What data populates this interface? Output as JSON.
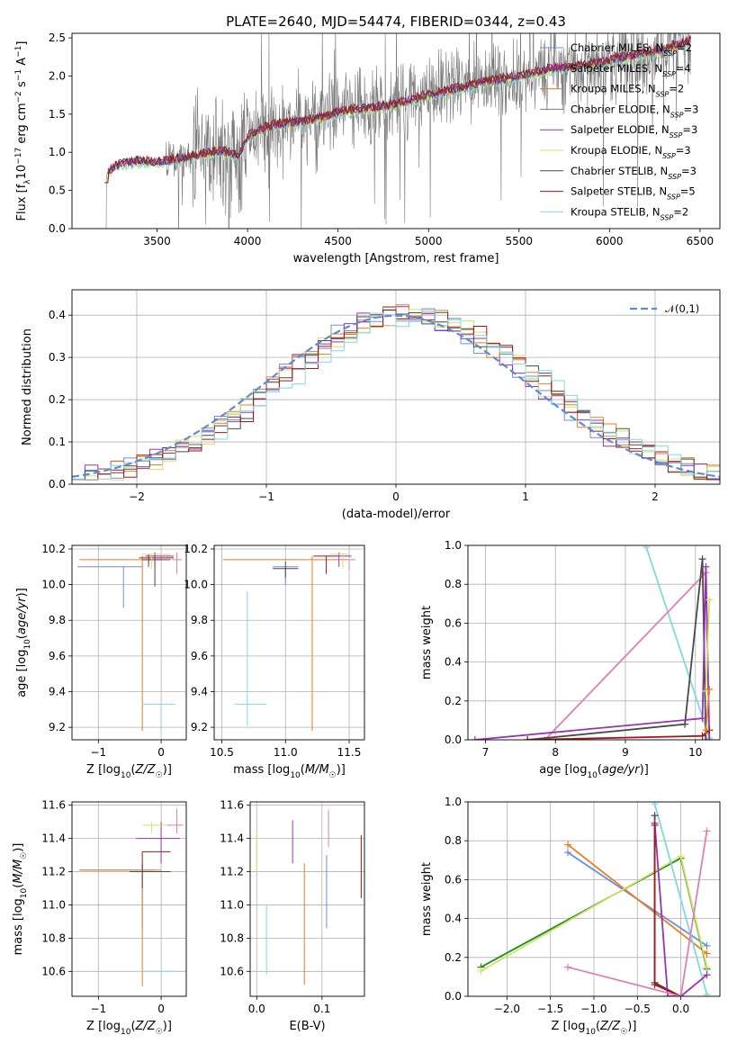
{
  "figure": {
    "title": "PLATE=2640, MJD=54474, FIBERID=0344, z=0.43"
  },
  "colors": {
    "Chabrier MILES": "#6a8fdc",
    "Salpeter MILES": "#9a32b4",
    "Kroupa MILES": "#e87e1e",
    "Chabrier ELODIE": "#1e8c1e",
    "Salpeter ELODIE": "#9a32b4",
    "Kroupa ELODIE": "#d3e06a",
    "Chabrier STELIB": "#4a4a4a",
    "Salpeter STELIB": "#a01818",
    "Kroupa STELIB": "#82d8e0",
    "extra": "#e080b0",
    "data": "#7a7a7a",
    "normal": "#5b8cdc"
  },
  "chart_data": [
    {
      "id": "spectrum",
      "type": "line",
      "title": "PLATE=2640, MJD=54474, FIBERID=0344, z=0.43",
      "xlabel": "wavelength [Angstrom, rest frame]",
      "ylabel": "Flux [f_λ 10^-17 erg cm^-2 s^-1 A^-1]",
      "xlim": [
        3030,
        6610
      ],
      "ylim": [
        0,
        2.56
      ],
      "xticks": [
        3500,
        4000,
        4500,
        5000,
        5500,
        6000,
        6500
      ],
      "yticks": [
        0.0,
        0.5,
        1.0,
        1.5,
        2.0,
        2.5
      ],
      "legend_position": "top-right",
      "legend": [
        {
          "label": "Chabrier MILES, N",
          "sub": "SSP",
          "tail": "=2",
          "key": "Chabrier MILES"
        },
        {
          "label": "Salpeter MILES, N",
          "sub": "SSP",
          "tail": "=4",
          "key": "Salpeter MILES"
        },
        {
          "label": "Kroupa MILES, N",
          "sub": "SSP",
          "tail": "=2",
          "key": "Kroupa MILES"
        },
        {
          "label": "Chabrier ELODIE, N",
          "sub": "SSP",
          "tail": "=3",
          "key": "data"
        },
        {
          "label": "Salpeter ELODIE, N",
          "sub": "SSP",
          "tail": "=3",
          "key": "Salpeter ELODIE"
        },
        {
          "label": "Kroupa ELODIE, N",
          "sub": "SSP",
          "tail": "=3",
          "key": "Kroupa ELODIE"
        },
        {
          "label": "Chabrier STELIB, N",
          "sub": "SSP",
          "tail": "=3",
          "key": "Chabrier STELIB"
        },
        {
          "label": "Salpeter STELIB, N",
          "sub": "SSP",
          "tail": "=5",
          "key": "Salpeter STELIB"
        },
        {
          "label": "Kroupa STELIB, N",
          "sub": "SSP",
          "tail": "=2",
          "key": "Kroupa STELIB"
        }
      ],
      "continuum": [
        [
          3210,
          0.72
        ],
        [
          3300,
          0.85
        ],
        [
          3400,
          0.88
        ],
        [
          3500,
          0.87
        ],
        [
          3600,
          0.9
        ],
        [
          3700,
          0.95
        ],
        [
          3800,
          1.0
        ],
        [
          3900,
          1.0
        ],
        [
          3950,
          0.95
        ],
        [
          4000,
          1.2
        ],
        [
          4100,
          1.32
        ],
        [
          4200,
          1.38
        ],
        [
          4300,
          1.4
        ],
        [
          4400,
          1.45
        ],
        [
          4500,
          1.52
        ],
        [
          4600,
          1.56
        ],
        [
          4700,
          1.58
        ],
        [
          4800,
          1.62
        ],
        [
          4900,
          1.68
        ],
        [
          5000,
          1.75
        ],
        [
          5100,
          1.8
        ],
        [
          5200,
          1.85
        ],
        [
          5300,
          1.92
        ],
        [
          5400,
          1.95
        ],
        [
          5500,
          2.0
        ],
        [
          5600,
          2.05
        ],
        [
          5700,
          2.1
        ],
        [
          5800,
          2.12
        ],
        [
          5900,
          2.15
        ],
        [
          6000,
          2.2
        ],
        [
          6100,
          2.25
        ],
        [
          6200,
          2.3
        ],
        [
          6300,
          2.35
        ],
        [
          6400,
          2.42
        ],
        [
          6450,
          2.46
        ]
      ]
    },
    {
      "id": "residuals",
      "type": "histogram",
      "xlabel": "(data-model)/error",
      "ylabel": "Normed distribution",
      "xlim": [
        -2.5,
        2.5
      ],
      "ylim": [
        0,
        0.46
      ],
      "xticks": [
        -2,
        -1,
        0,
        1,
        2
      ],
      "yticks": [
        0.0,
        0.1,
        0.2,
        0.3,
        0.4
      ],
      "grid": true,
      "legend_position": "top-right",
      "legend": [
        {
          "label": "𝒩(0,1)",
          "key": "normal",
          "style": "dashed"
        }
      ],
      "bin_width": 0.1
    },
    {
      "id": "age_vs_Z",
      "type": "errorbar",
      "xlabel": "Z [log10(Z/Z☉)]",
      "ylabel": "age [log10(age/yr)]",
      "xlim": [
        -1.42,
        0.4
      ],
      "ylim": [
        9.13,
        10.22
      ],
      "xticks": [
        -1,
        0
      ],
      "yticks": [
        9.2,
        9.4,
        9.6,
        9.8,
        10.0,
        10.2
      ],
      "grid": true,
      "points": [
        {
          "key": "Chabrier MILES",
          "x": -0.6,
          "xerr": [
            0.73,
            0.3
          ],
          "y": 10.1,
          "yerr": [
            0.23,
            0.0
          ]
        },
        {
          "key": "Kroupa MILES",
          "x": -0.3,
          "xerr": [
            1.0,
            0.3
          ],
          "y": 10.14,
          "yerr": [
            0.96,
            0.02
          ]
        },
        {
          "key": "Kroupa STELIB",
          "x": 0.0,
          "xerr": [
            0.3,
            0.22
          ],
          "y": 9.33,
          "yerr": [
            0.15,
            0.0
          ]
        },
        {
          "key": "Chabrier STELIB",
          "x": -0.1,
          "xerr": [
            0.2,
            0.25
          ],
          "y": 10.14,
          "yerr": [
            0.15,
            0.04
          ]
        },
        {
          "key": "Salpeter STELIB",
          "x": -0.2,
          "xerr": [
            0.15,
            0.4
          ],
          "y": 10.15,
          "yerr": [
            0.05,
            0.02
          ]
        },
        {
          "key": "Salpeter MILES",
          "x": -0.1,
          "xerr": [
            0.15,
            0.3
          ],
          "y": 10.16,
          "yerr": [
            0.06,
            0.02
          ]
        },
        {
          "key": "Kroupa ELODIE",
          "x": -0.15,
          "xerr": [
            0.15,
            0.3
          ],
          "y": 10.17,
          "yerr": [
            0.08,
            0.0
          ]
        },
        {
          "key": "extra",
          "x": 0.25,
          "xerr": [
            0.08,
            0.08
          ],
          "y": 10.14,
          "yerr": [
            0.08,
            0.04
          ]
        }
      ]
    },
    {
      "id": "age_vs_mass",
      "type": "errorbar",
      "xlabel": "mass [log10(M/M☉)]",
      "ylabel": "",
      "xlim": [
        10.44,
        11.62
      ],
      "ylim": [
        9.13,
        10.22
      ],
      "xticks": [
        10.5,
        11.0,
        11.5
      ],
      "yticks": [
        9.2,
        9.4,
        9.6,
        9.8,
        10.0,
        10.2
      ],
      "grid": true,
      "points": [
        {
          "key": "Kroupa STELIB",
          "x": 10.7,
          "xerr": [
            0.1,
            0.15
          ],
          "y": 9.33,
          "yerr": [
            0.12,
            0.63
          ]
        },
        {
          "key": "Chabrier MILES",
          "x": 11.0,
          "xerr": [
            0.1,
            0.1
          ],
          "y": 10.1,
          "yerr": [
            0.1,
            0.0
          ]
        },
        {
          "key": "Kroupa MILES",
          "x": 11.21,
          "xerr": [
            0.7,
            0.27
          ],
          "y": 10.14,
          "yerr": [
            0.96,
            0.02
          ]
        },
        {
          "key": "Chabrier STELIB",
          "x": 11.0,
          "xerr": [
            0.1,
            0.1
          ],
          "y": 10.09,
          "yerr": [
            0.05,
            0.04
          ]
        },
        {
          "key": "Salpeter STELIB",
          "x": 11.32,
          "xerr": [
            0.1,
            0.1
          ],
          "y": 10.16,
          "yerr": [
            0.1,
            0.0
          ]
        },
        {
          "key": "Salpeter MILES",
          "x": 11.42,
          "xerr": [
            0.1,
            0.1
          ],
          "y": 10.16,
          "yerr": [
            0.06,
            0.02
          ]
        },
        {
          "key": "Kroupa ELODIE",
          "x": 11.45,
          "xerr": [
            0.1,
            0.05
          ],
          "y": 10.17,
          "yerr": [
            0.08,
            0.0
          ]
        },
        {
          "key": "extra",
          "x": 11.5,
          "xerr": [
            0.05,
            0.05
          ],
          "y": 10.14,
          "yerr": [
            0.06,
            0.0
          ]
        }
      ]
    },
    {
      "id": "massweight_vs_age",
      "type": "line",
      "xlabel": "age [log10(age/yr)]",
      "ylabel": "mass weight",
      "xlim": [
        6.75,
        10.35
      ],
      "ylim": [
        0,
        1.0
      ],
      "xticks": [
        7,
        8,
        9,
        10
      ],
      "yticks": [
        0.0,
        0.2,
        0.4,
        0.6,
        0.8,
        1.0
      ],
      "grid": true,
      "series": [
        {
          "key": "Kroupa STELIB",
          "x": [
            9.3,
            10.2
          ],
          "y": [
            0.99,
            0.01
          ]
        },
        {
          "key": "extra",
          "x": [
            7.85,
            10.15
          ],
          "y": [
            0.0,
            0.86
          ]
        },
        {
          "key": "Chabrier STELIB",
          "x": [
            7.6,
            9.85,
            10.1,
            10.15
          ],
          "y": [
            0.0,
            0.08,
            0.93,
            0.0
          ]
        },
        {
          "key": "Salpeter MILES",
          "x": [
            6.85,
            10.1,
            10.15,
            10.2
          ],
          "y": [
            0.0,
            0.11,
            0.89,
            0.0
          ]
        },
        {
          "key": "Salpeter STELIB",
          "x": [
            7.6,
            10.1,
            10.2
          ],
          "y": [
            0.0,
            0.02,
            0.05
          ]
        },
        {
          "key": "Kroupa ELODIE",
          "x": [
            10.15,
            10.2
          ],
          "y": [
            0.25,
            0.72
          ]
        },
        {
          "key": "Kroupa MILES",
          "x": [
            10.15,
            10.2
          ],
          "y": [
            0.05,
            0.26
          ]
        }
      ]
    },
    {
      "id": "mass_vs_Z",
      "type": "errorbar",
      "xlabel": "Z [log10(Z/Z☉)]",
      "ylabel": "mass [log10(M/M☉)]",
      "xlim": [
        -1.42,
        0.4
      ],
      "ylim": [
        10.45,
        11.62
      ],
      "xticks": [
        -1,
        0
      ],
      "yticks": [
        10.6,
        10.8,
        11.0,
        11.2,
        11.4,
        11.6
      ],
      "grid": true,
      "points": [
        {
          "key": "Chabrier MILES",
          "x": -0.3,
          "xerr": [
            1.0,
            0.2
          ],
          "y": 11.21,
          "yerr": [
            0.35,
            0.02
          ]
        },
        {
          "key": "Kroupa MILES",
          "x": -0.3,
          "xerr": [
            1.0,
            0.3
          ],
          "y": 11.21,
          "yerr": [
            0.7,
            0.0
          ]
        },
        {
          "key": "Kroupa STELIB",
          "x": 0.0,
          "xerr": [
            0.3,
            0.22
          ],
          "y": 10.6,
          "yerr": [
            0.0,
            0.0
          ]
        },
        {
          "key": "Chabrier STELIB",
          "x": -0.3,
          "xerr": [
            0.2,
            0.45
          ],
          "y": 11.2,
          "yerr": [
            0.1,
            0.05
          ]
        },
        {
          "key": "Salpeter STELIB",
          "x": -0.3,
          "xerr": [
            0.0,
            0.45
          ],
          "y": 11.32,
          "yerr": [
            0.1,
            0.0
          ]
        },
        {
          "key": "Salpeter MILES",
          "x": 0.0,
          "xerr": [
            0.4,
            0.3
          ],
          "y": 11.4,
          "yerr": [
            0.15,
            0.1
          ]
        },
        {
          "key": "Kroupa ELODIE",
          "x": -0.15,
          "xerr": [
            0.15,
            0.25
          ],
          "y": 11.48,
          "yerr": [
            0.05,
            0.02
          ]
        },
        {
          "key": "extra",
          "x": 0.25,
          "xerr": [
            0.15,
            0.1
          ],
          "y": 11.48,
          "yerr": [
            0.05,
            0.1
          ]
        }
      ]
    },
    {
      "id": "mass_vs_ebv",
      "type": "errorbar",
      "xlabel": "E(B-V)",
      "ylabel": "",
      "xlim": [
        -0.01,
        0.165
      ],
      "ylim": [
        10.45,
        11.62
      ],
      "xticks": [
        0.0,
        0.1
      ],
      "yticks": [
        10.6,
        10.8,
        11.0,
        11.2,
        11.4,
        11.6
      ],
      "grid": true,
      "points": [
        {
          "key": "Kroupa ELODIE",
          "x": 0.0,
          "y": 11.35,
          "yerr": [
            0.15,
            0.1
          ]
        },
        {
          "key": "Kroupa STELIB",
          "x": 0.015,
          "y": 10.8,
          "yerr": [
            0.22,
            0.2
          ]
        },
        {
          "key": "Salpeter MILES",
          "x": 0.055,
          "y": 11.38,
          "yerr": [
            0.13,
            0.13
          ]
        },
        {
          "key": "Kroupa MILES",
          "x": 0.073,
          "y": 10.9,
          "yerr": [
            0.38,
            0.35
          ]
        },
        {
          "key": "Chabrier MILES",
          "x": 0.107,
          "y": 11.08,
          "yerr": [
            0.22,
            0.22
          ]
        },
        {
          "key": "extra",
          "x": 0.11,
          "y": 11.45,
          "yerr": [
            0.1,
            0.12
          ]
        },
        {
          "key": "Salpeter STELIB",
          "x": 0.16,
          "y": 11.22,
          "yerr": [
            0.18,
            0.2
          ]
        }
      ]
    },
    {
      "id": "massweight_vs_Z",
      "type": "line",
      "xlabel": "Z [log10(Z/Z☉)]",
      "ylabel": "mass weight",
      "xlim": [
        -2.45,
        0.45
      ],
      "ylim": [
        0,
        1.0
      ],
      "xticks": [
        -2.0,
        -1.5,
        -1.0,
        -0.5,
        0.0
      ],
      "yticks": [
        0.0,
        0.2,
        0.4,
        0.6,
        0.8,
        1.0
      ],
      "grid": true,
      "series": [
        {
          "key": "Chabrier MILES",
          "x": [
            -1.3,
            0.3
          ],
          "y": [
            0.74,
            0.26
          ]
        },
        {
          "key": "Kroupa MILES",
          "x": [
            -1.3,
            0.3
          ],
          "y": [
            0.78,
            0.22
          ]
        },
        {
          "key": "Chabrier ELODIE",
          "x": [
            -2.3,
            0.0,
            0.3
          ],
          "y": [
            0.15,
            0.71,
            0.14
          ]
        },
        {
          "key": "Kroupa ELODIE",
          "x": [
            -2.3,
            0.0,
            0.3
          ],
          "y": [
            0.13,
            0.72,
            0.15
          ]
        },
        {
          "key": "Kroupa STELIB",
          "x": [
            -0.3,
            0.3
          ],
          "y": [
            0.99,
            0.01
          ]
        },
        {
          "key": "Chabrier STELIB",
          "x": [
            -0.3,
            -0.3,
            0.0
          ],
          "y": [
            0.93,
            0.07,
            0.0
          ]
        },
        {
          "key": "Salpeter MILES",
          "x": [
            -0.3,
            -0.15,
            0.0,
            0.3
          ],
          "y": [
            0.89,
            0.0,
            0.0,
            0.11
          ]
        },
        {
          "key": "Salpeter STELIB",
          "x": [
            -0.3,
            -0.3,
            0.0
          ],
          "y": [
            0.88,
            0.06,
            0.0
          ]
        },
        {
          "key": "extra",
          "x": [
            -1.3,
            0.0,
            0.3
          ],
          "y": [
            0.15,
            0.0,
            0.85
          ]
        }
      ]
    }
  ]
}
